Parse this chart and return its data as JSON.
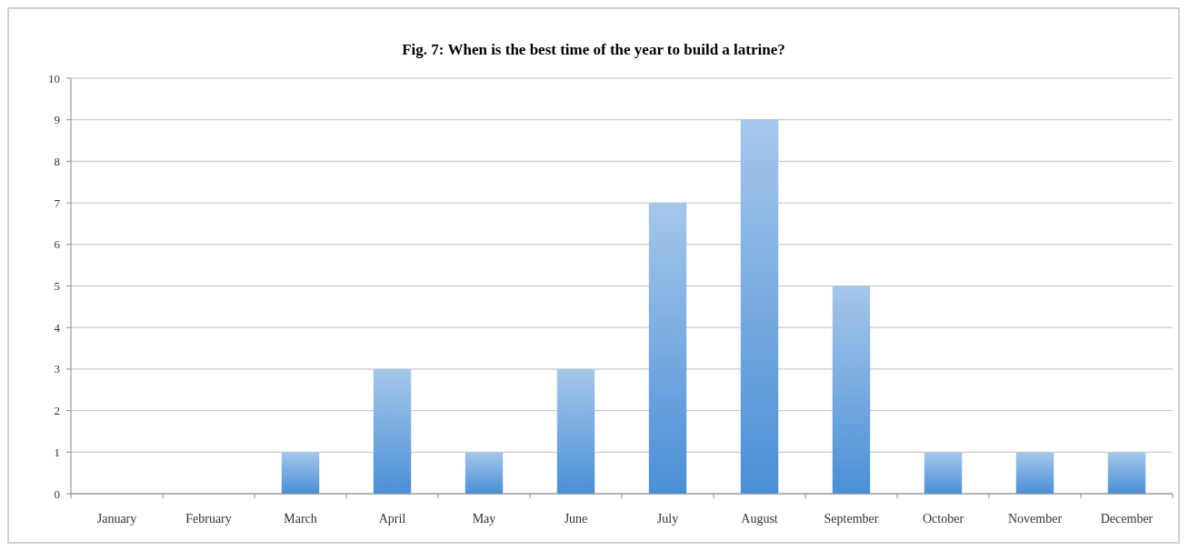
{
  "chart_data": {
    "type": "bar",
    "title": "Fig. 7: When is the best time of the year to build a latrine?",
    "categories": [
      "January",
      "February",
      "March",
      "April",
      "May",
      "June",
      "July",
      "August",
      "September",
      "October",
      "November",
      "December"
    ],
    "values": [
      0,
      0,
      1,
      3,
      1,
      3,
      7,
      9,
      5,
      1,
      1,
      1
    ],
    "color": "#4a8fd6",
    "ylim": [
      0,
      10
    ],
    "yticks": [
      0,
      1,
      2,
      3,
      4,
      5,
      6,
      7,
      8,
      9,
      10
    ],
    "grid": "y"
  }
}
